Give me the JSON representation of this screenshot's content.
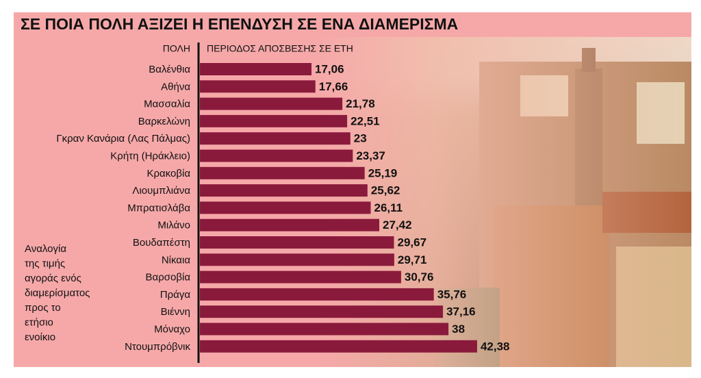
{
  "chart_data": {
    "type": "hbar",
    "title": "ΣΕ ΠΟΙΑ ΠΟΛΗ ΑΞΙΖΕΙ Η ΕΠΕΝΔΥΣΗ ΣΕ ΕΝΑ ΔΙΑΜΕΡΙΣΜΑ",
    "category_header": "ΠΟΛΗ",
    "value_header": "ΠΕΡΙΟΔΟΣ ΑΠΟΣΒΕΣΗΣ ΣΕ ΕΤΗ",
    "note": [
      "Αναλογία",
      "της τιμής",
      "αγοράς ενός",
      "διαμερίσματος",
      "προς το",
      "ετήσιο",
      "ενοίκιο"
    ],
    "categories": [
      "Βαλένθια",
      "Αθήνα",
      "Μασσαλία",
      "Βαρκελώνη",
      "Γκραν Κανάρια (Λας Πάλμας)",
      "Κρήτη (Ηράκλειο)",
      "Κρακοβία",
      "Λιουμπλιάνα",
      "Μπρατισλάβα",
      "Μιλάνο",
      "Βουδαπέστη",
      "Νίκαια",
      "Βαρσοβία",
      "Πράγα",
      "Βιέννη",
      "Μόναχο",
      "Ντουμπρόβνικ"
    ],
    "values": [
      17.06,
      17.66,
      21.78,
      22.51,
      23,
      23.37,
      25.19,
      25.62,
      26.11,
      27.42,
      29.67,
      29.71,
      30.76,
      35.76,
      37.16,
      38,
      42.38
    ],
    "value_labels": [
      "17,06",
      "17,66",
      "21,78",
      "22,51",
      "23",
      "23,37",
      "25,19",
      "25,62",
      "26,11",
      "27,42",
      "29,67",
      "29,71",
      "30,76",
      "35,76",
      "37,16",
      "38",
      "42,38"
    ],
    "color": "#8a1a3c",
    "xlim": [
      0,
      45
    ]
  }
}
